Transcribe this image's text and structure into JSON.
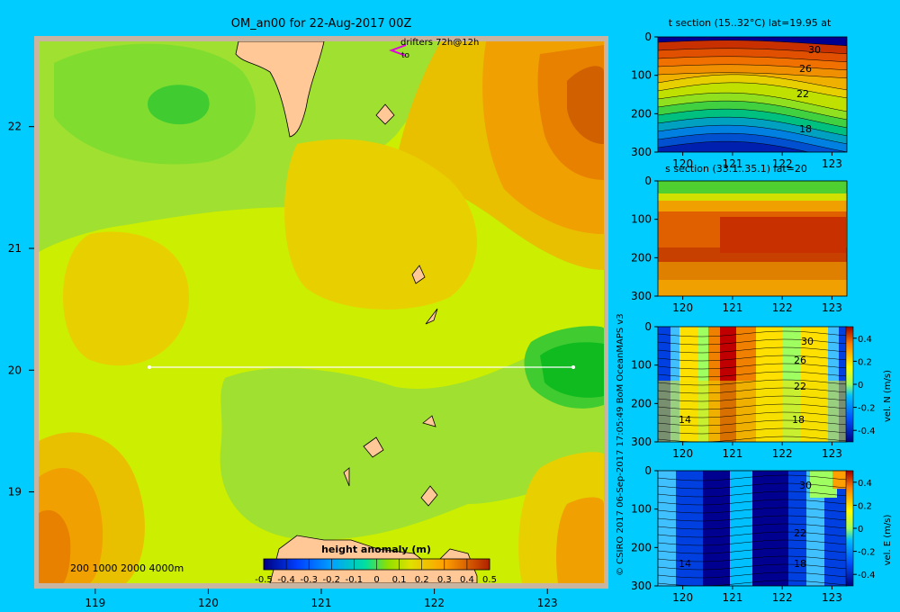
{
  "chart_data": [
    {
      "type": "heatmap",
      "title": "OM_an00 for 22-Aug-2017 00Z",
      "xlabel": "",
      "ylabel": "",
      "xlim": [
        118.5,
        123.5
      ],
      "ylim": [
        18.25,
        22.7
      ],
      "xticks": [
        "119",
        "120",
        "121",
        "122",
        "123"
      ],
      "yticks": [
        "19",
        "20",
        "21",
        "22"
      ],
      "colorbar": {
        "label": "height anomaly  (m)",
        "ticks": [
          "-0.5",
          "-0.4",
          "-0.3",
          "-0.2",
          "-0.1",
          "0",
          "0.1",
          "0.2",
          "0.3",
          "0.4",
          "0.5"
        ],
        "range": [
          -0.5,
          0.5
        ]
      },
      "field_samples": {
        "description_units": "m",
        "points": [
          {
            "lon": 119.5,
            "lat": 22.2,
            "value": 0.05
          },
          {
            "lon": 123.3,
            "lat": 22.2,
            "value": 0.38
          },
          {
            "lon": 122.2,
            "lat": 21.6,
            "value": 0.3
          },
          {
            "lon": 121.0,
            "lat": 21.0,
            "value": 0.15
          },
          {
            "lon": 123.1,
            "lat": 20.0,
            "value": 0.0
          },
          {
            "lon": 121.2,
            "lat": 19.5,
            "value": 0.08
          },
          {
            "lon": 118.8,
            "lat": 18.7,
            "value": 0.3
          },
          {
            "lon": 119.5,
            "lat": 20.6,
            "value": 0.18
          }
        ]
      },
      "section_line": {
        "lat": 20.0,
        "lon_start": 119.5,
        "lon_end": 123.2
      },
      "annotations": {
        "drifters": "drifters 72h@12h",
        "drifter_tag": "to",
        "depth_legend": "200  1000  2000  4000m",
        "credit": "© CSIRO 2017    06-Sep-2017 17:05:49 BoM OceanMAPS v3"
      }
    },
    {
      "type": "heatmap",
      "title": "t section (15..32°C) lat=19.95 at",
      "xlim": [
        119.5,
        123.3
      ],
      "ylim": [
        300,
        0
      ],
      "xticks": [
        "120",
        "121",
        "122",
        "123"
      ],
      "yticks": [
        "0",
        "100",
        "200",
        "300"
      ],
      "contour_labels": [
        "30",
        "26",
        "22",
        "18"
      ]
    },
    {
      "type": "heatmap",
      "title": "s section (33.1..35.1) lat=20",
      "xlim": [
        119.5,
        123.3
      ],
      "ylim": [
        300,
        0
      ],
      "xticks": [
        "120",
        "121",
        "122",
        "123"
      ],
      "yticks": [
        "0",
        "100",
        "200",
        "300"
      ]
    },
    {
      "type": "heatmap",
      "title": "",
      "xlim": [
        119.5,
        123.3
      ],
      "ylim": [
        300,
        0
      ],
      "xticks": [
        "120",
        "121",
        "122",
        "123"
      ],
      "yticks": [
        "0",
        "100",
        "200",
        "300"
      ],
      "contour_labels": [
        "30",
        "26",
        "22",
        "18",
        "14"
      ],
      "colorbar": {
        "label": "vel. N  (m/s)",
        "ticks": [
          "0.4",
          "0.2",
          "0",
          "-0.2",
          "-0.4"
        ],
        "range": [
          -0.5,
          0.5
        ]
      }
    },
    {
      "type": "heatmap",
      "title": "",
      "xlim": [
        119.5,
        123.3
      ],
      "ylim": [
        300,
        0
      ],
      "xticks": [
        "120",
        "121",
        "122",
        "123"
      ],
      "yticks": [
        "0",
        "100",
        "200",
        "300"
      ],
      "contour_labels": [
        "30",
        "22",
        "18",
        "14"
      ],
      "colorbar": {
        "label": "vel. E  (m/s)",
        "ticks": [
          "0.4",
          "0.2",
          "0",
          "-0.2",
          "-0.4"
        ],
        "range": [
          -0.5,
          0.5
        ]
      }
    }
  ]
}
